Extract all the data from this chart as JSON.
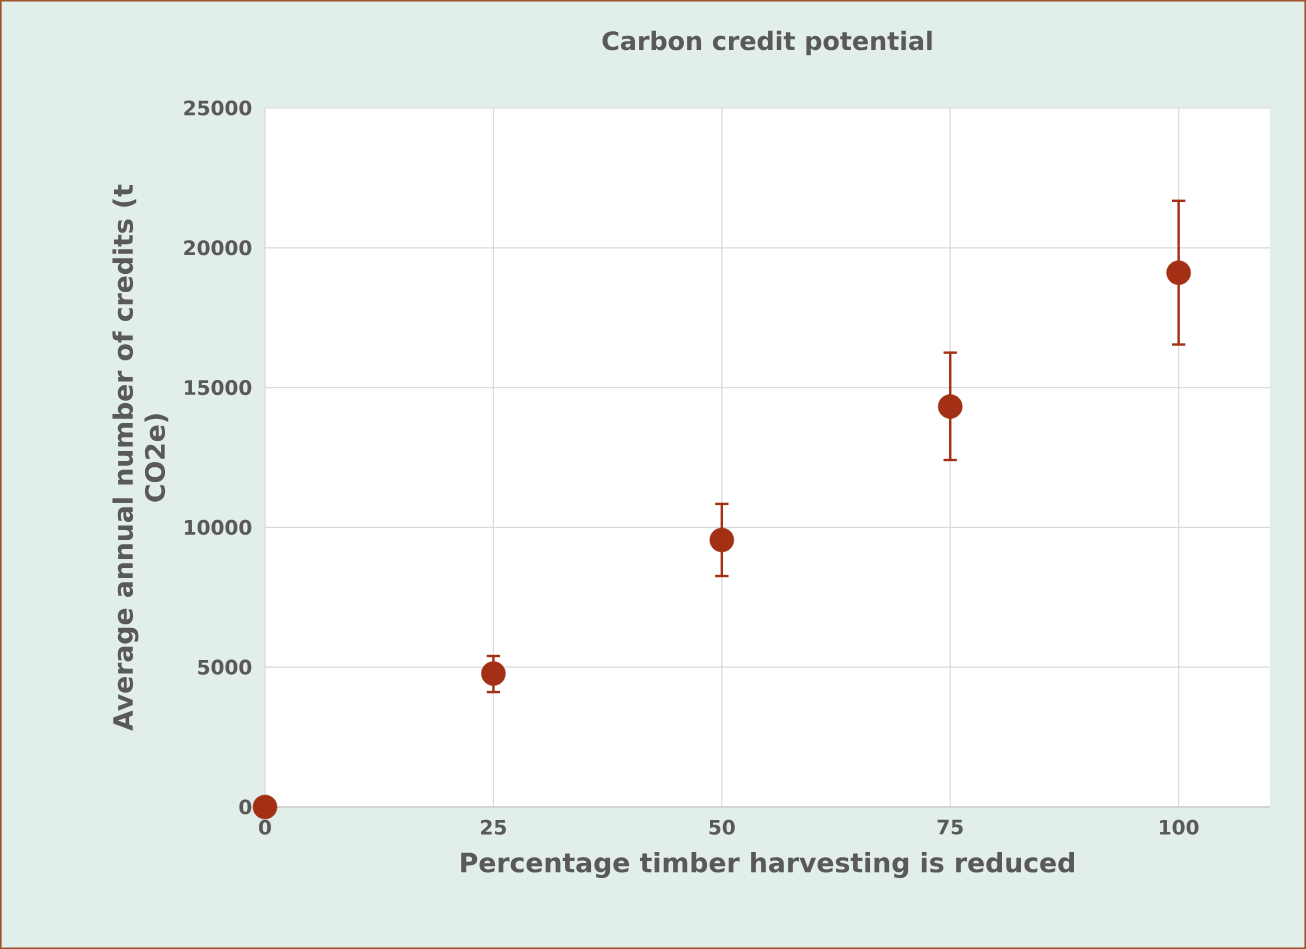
{
  "chart_data": {
    "type": "scatter",
    "title": "Carbon credit potential",
    "xlabel": "Percentage timber harvesting is reduced",
    "ylabel": "Average annual number of credits (t CO2e)",
    "x": [
      0,
      25,
      50,
      75,
      100
    ],
    "values": [
      0,
      4770,
      9550,
      14320,
      19110
    ],
    "errors": [
      null,
      [
        4110,
        5400
      ],
      [
        8260,
        10840
      ],
      [
        12410,
        16250
      ],
      [
        16540,
        21680
      ]
    ],
    "color": "#a33014",
    "marker": "circle",
    "xlim": [
      0,
      110
    ],
    "xticks": [
      0,
      25,
      50,
      75,
      100
    ],
    "ylim": [
      0,
      25000
    ],
    "yticks": [
      0,
      5000,
      10000,
      15000,
      20000,
      25000
    ],
    "grid": true
  }
}
